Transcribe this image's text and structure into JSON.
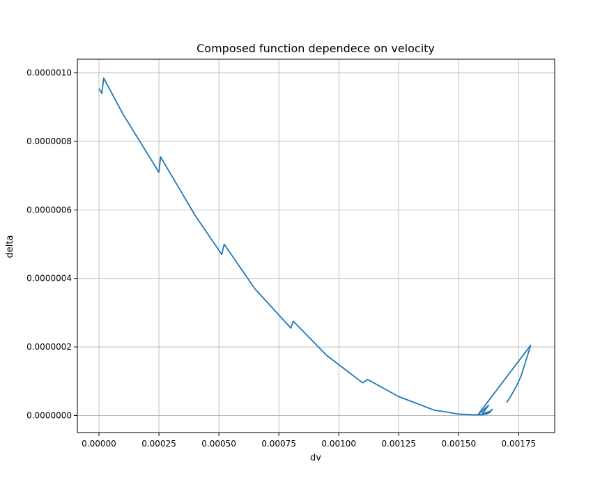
{
  "chart_data": {
    "type": "line",
    "title": "Composed function dependece on velocity",
    "xlabel": "dv",
    "ylabel": "delta",
    "xlim": [
      -9e-05,
      0.0019
    ],
    "ylim": [
      -5e-08,
      1.04e-06
    ],
    "grid": true,
    "line_color": "#1f77b4",
    "xticks": [
      {
        "value": 0.0,
        "label": "0.00000"
      },
      {
        "value": 0.00025,
        "label": "0.00025"
      },
      {
        "value": 0.0005,
        "label": "0.00050"
      },
      {
        "value": 0.00075,
        "label": "0.00075"
      },
      {
        "value": 0.001,
        "label": "0.00100"
      },
      {
        "value": 0.00125,
        "label": "0.00125"
      },
      {
        "value": 0.0015,
        "label": "0.00150"
      },
      {
        "value": 0.00175,
        "label": "0.00175"
      }
    ],
    "yticks": [
      {
        "value": 0.0,
        "label": "0.0000000"
      },
      {
        "value": 2e-07,
        "label": "0.0000002"
      },
      {
        "value": 4e-07,
        "label": "0.0000004"
      },
      {
        "value": 6e-07,
        "label": "0.0000006"
      },
      {
        "value": 8e-07,
        "label": "0.0000008"
      },
      {
        "value": 1e-06,
        "label": "0.0000010"
      }
    ],
    "series": [
      {
        "x": [
          0.0,
          1.2e-05,
          2e-05,
          0.0001,
          0.00025,
          0.000257,
          0.0004,
          0.000512,
          0.000522,
          0.00065,
          0.0008,
          0.00081,
          0.00095,
          0.0011,
          0.00112,
          0.00125,
          0.0014,
          0.00145,
          0.0015,
          0.00156,
          0.00158,
          0.001625,
          0.001598,
          0.00163,
          0.001615,
          0.00164,
          0.001628,
          0.0016,
          0.00158,
          0.0018,
          0.00178,
          0.00176,
          0.00174,
          0.00172,
          0.0017
        ],
        "y": [
          9.55e-07,
          9.4e-07,
          9.85e-07,
          8.8e-07,
          7.1e-07,
          7.55e-07,
          5.85e-07,
          4.7e-07,
          5e-07,
          3.7e-07,
          2.55e-07,
          2.75e-07,
          1.75e-07,
          9.5e-08,
          1.05e-07,
          5.5e-08,
          1.5e-08,
          1e-08,
          4e-09,
          2e-09,
          2e-09,
          3e-08,
          5e-09,
          1.2e-08,
          3e-09,
          1.8e-08,
          8e-09,
          2e-09,
          2e-09,
          2.05e-07,
          1.6e-07,
          1.15e-07,
          8.5e-08,
          6e-08,
          3.8e-08
        ]
      }
    ]
  }
}
